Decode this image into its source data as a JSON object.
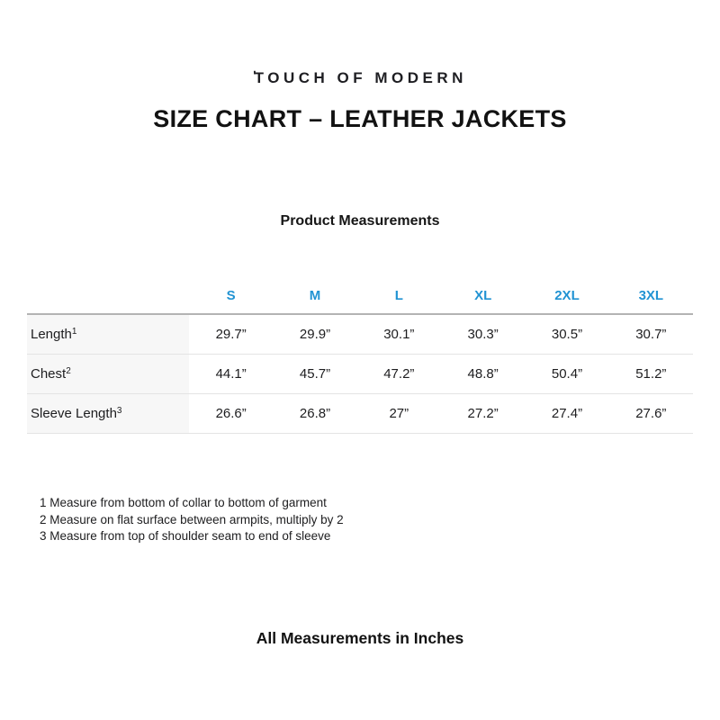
{
  "logo": {
    "mark": "ʹ",
    "text": "TOUCH OF MODERN"
  },
  "title": "SIZE CHART – LEATHER JACKETS",
  "subtitle": "Product Measurements",
  "table": {
    "sizes": [
      "S",
      "M",
      "L",
      "XL",
      "2XL",
      "3XL"
    ],
    "rows": [
      {
        "label": "Length",
        "sup": "1",
        "values": [
          "29.7”",
          "29.9”",
          "30.1”",
          "30.3”",
          "30.5”",
          "30.7”"
        ]
      },
      {
        "label": "Chest",
        "sup": "2",
        "values": [
          "44.1”",
          "45.7”",
          "47.2”",
          "48.8”",
          "50.4”",
          "51.2”"
        ]
      },
      {
        "label": "Sleeve Length",
        "sup": "3",
        "values": [
          "26.6”",
          "26.8”",
          "27”",
          "27.2”",
          "27.4”",
          "27.6”"
        ]
      }
    ]
  },
  "footnotes": [
    "1 Measure from bottom of collar to bottom of garment",
    "2 Measure on flat surface between armpits, multiply by 2",
    "3 Measure from top of shoulder seam to end of sleeve"
  ],
  "bottom_note": "All Measurements in Inches",
  "colors": {
    "size_header_blue": "#2193d3",
    "label_cell_bg": "#f7f7f7",
    "header_rule": "#b3b3b3",
    "row_rule": "#e4e4e4",
    "text": "#1d1d1f",
    "background": "#ffffff"
  }
}
